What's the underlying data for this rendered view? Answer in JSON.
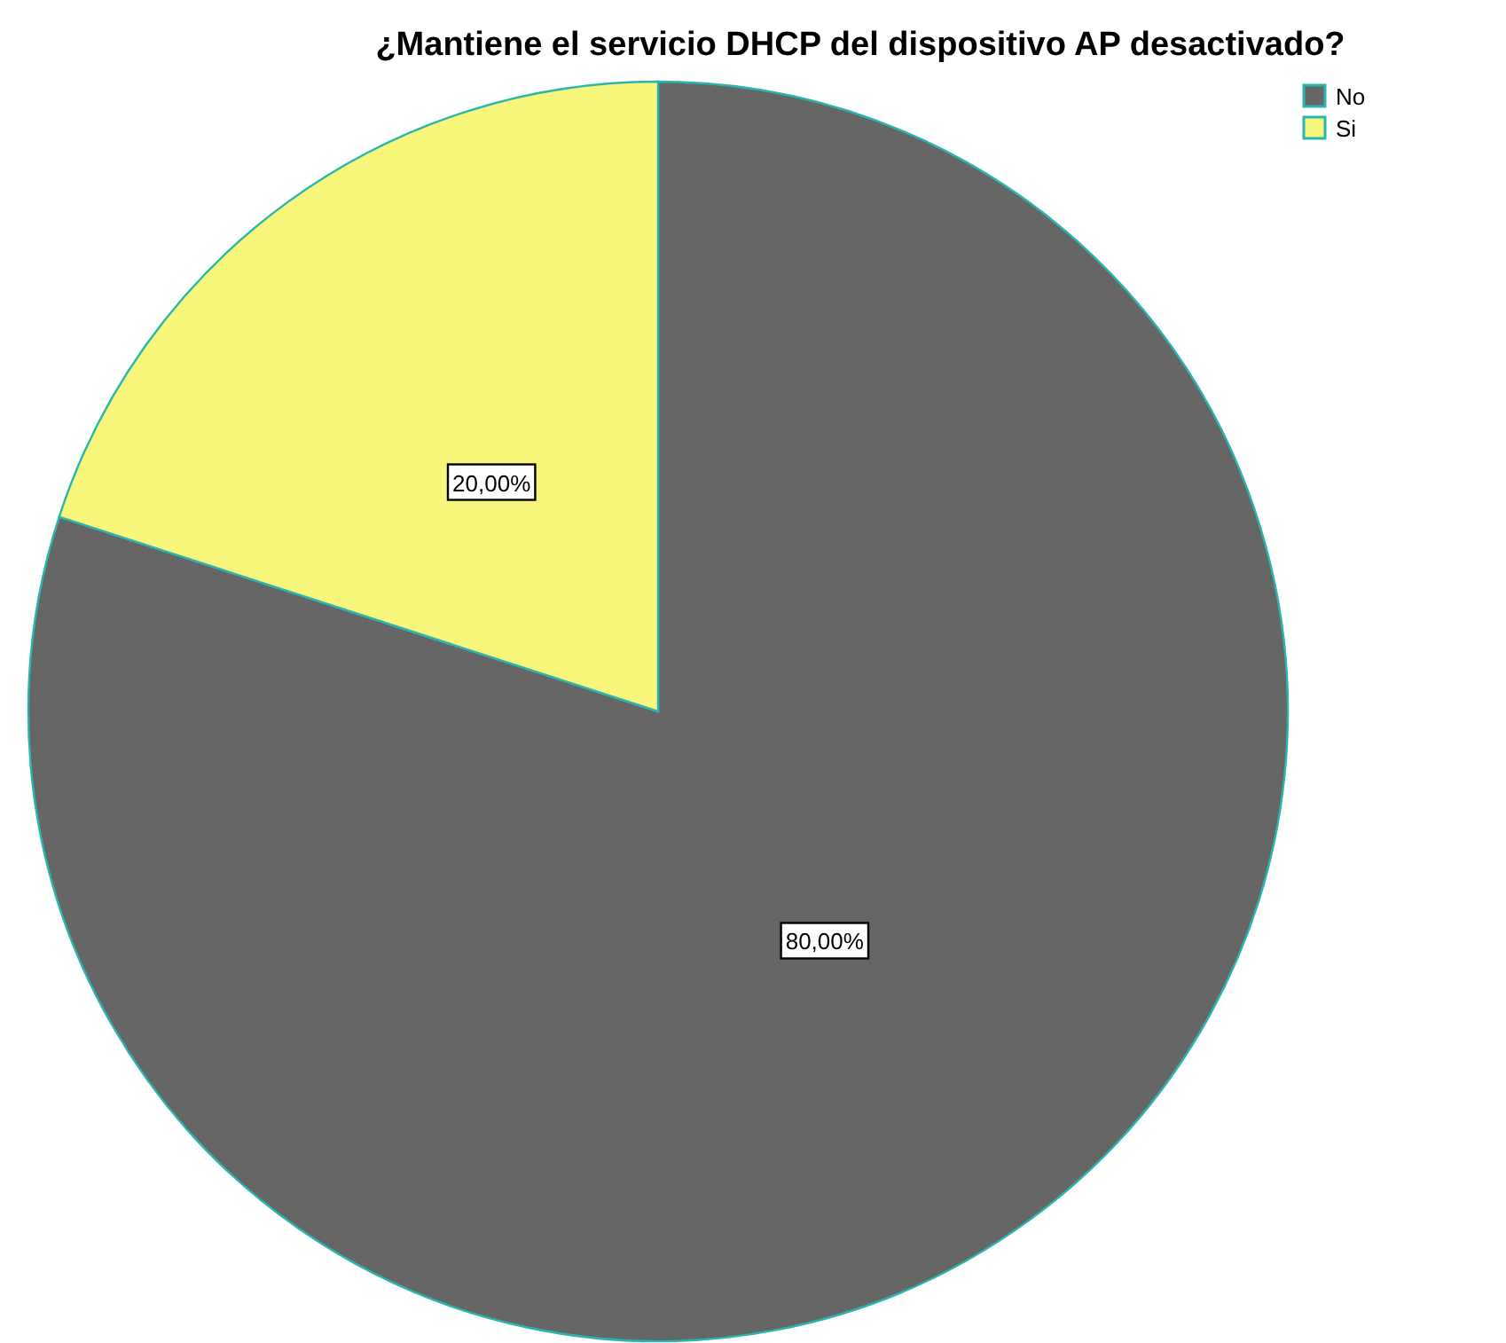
{
  "chart_data": {
    "type": "pie",
    "title": "¿Mantiene el servicio DHCP del dispositivo AP desactivado?",
    "categories": [
      "No",
      "Si"
    ],
    "values": [
      80,
      20
    ],
    "colors": [
      "#666666",
      "#f8f77c"
    ],
    "value_labels": [
      "80,00%",
      "20,00%"
    ],
    "legend": "top right"
  }
}
